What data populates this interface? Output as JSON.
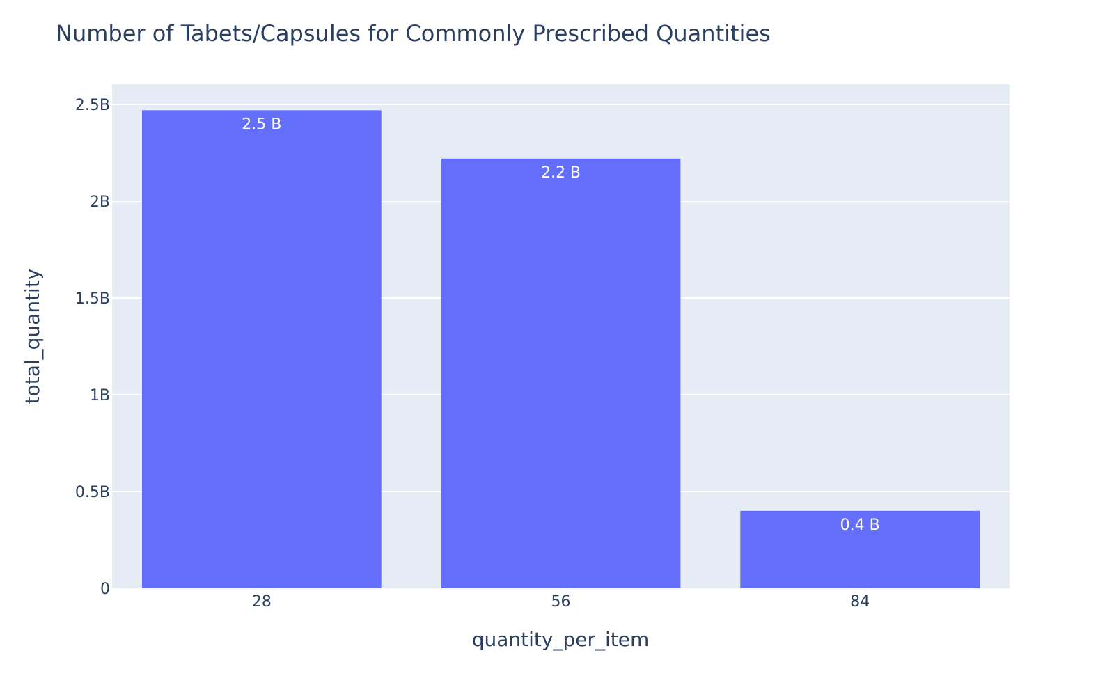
{
  "chart_data": {
    "type": "bar",
    "title": "Number of Tabets/Capsules for Commonly Prescribed Quantities",
    "xlabel": "quantity_per_item",
    "ylabel": "total_quantity",
    "categories": [
      "28",
      "56",
      "84"
    ],
    "values": [
      2470000000,
      2220000000,
      400000000
    ],
    "data_labels": [
      "2.5 B",
      "2.2 B",
      "0.4 B"
    ],
    "ylim": [
      0,
      2600000000
    ],
    "yticks": [
      0,
      500000000,
      1000000000,
      1500000000,
      2000000000,
      2500000000
    ],
    "ytick_labels": [
      "0",
      "0.5B",
      "1B",
      "1.5B",
      "2B",
      "2.5B"
    ],
    "grid": true,
    "legend": "none"
  },
  "colors": {
    "bar": "#636efa",
    "plot_background": "#e5ecf6",
    "grid": "#ffffff",
    "text": "#2a3f5f",
    "data_label": "#ffffff"
  }
}
